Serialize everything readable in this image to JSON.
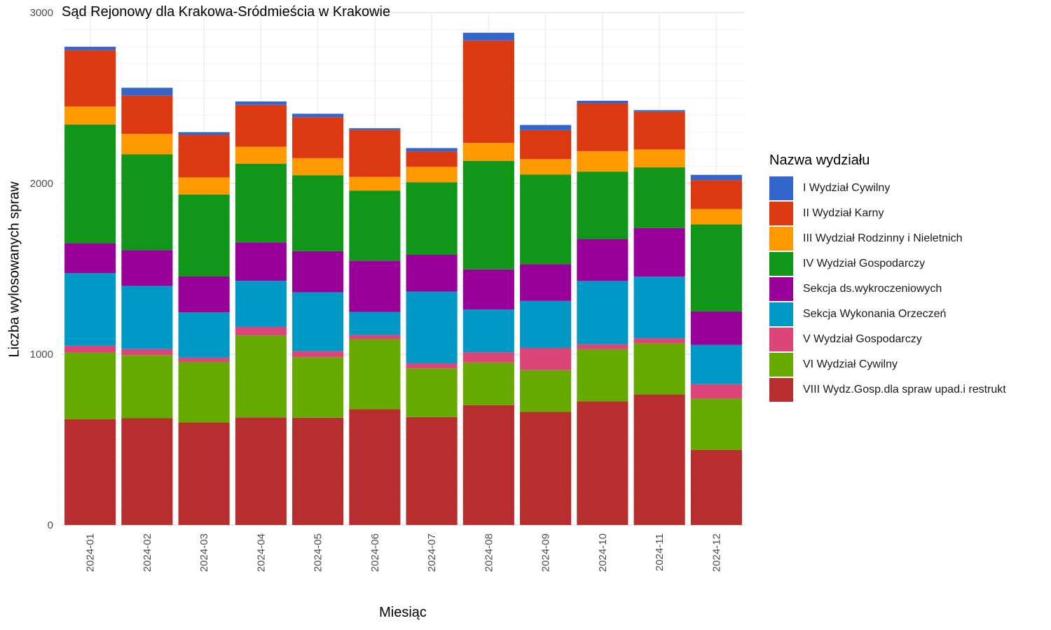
{
  "chart_data": {
    "type": "bar",
    "stacked": true,
    "title": "Sąd Rejonowy dla Krakowa-Sródmieścia w Krakowie",
    "xlabel": "Miesiąc",
    "ylabel": "Liczba wylosowanych spraw",
    "ylim": [
      0,
      3000
    ],
    "yticks": [
      "0",
      "1000",
      "2000",
      "3000"
    ],
    "grid": true,
    "legend_title": "Nazwa wydziału",
    "legend_position": "right",
    "categories": [
      "2024-01",
      "2024-02",
      "2024-03",
      "2024-04",
      "2024-05",
      "2024-06",
      "2024-07",
      "2024-08",
      "2024-09",
      "2024-10",
      "2024-11",
      "2024-12"
    ],
    "series": [
      {
        "name": "VIII Wydz.Gosp.dla spraw upad.i restrukt",
        "color": "#B82E2E",
        "values": [
          620,
          625,
          600,
          630,
          628,
          678,
          632,
          702,
          662,
          724,
          764,
          440
        ]
      },
      {
        "name": "VI Wydział Cywilny",
        "color": "#66AA00",
        "values": [
          390,
          370,
          355,
          480,
          355,
          410,
          285,
          250,
          245,
          305,
          300,
          300
        ]
      },
      {
        "name": "V Wydział Gospodarczy",
        "color": "#DD4477",
        "values": [
          40,
          35,
          25,
          50,
          35,
          25,
          30,
          60,
          130,
          30,
          30,
          85
        ]
      },
      {
        "name": "Sekcja Wykonania Orzeczeń",
        "color": "#0099C6",
        "values": [
          425,
          370,
          265,
          270,
          345,
          135,
          420,
          250,
          275,
          370,
          360,
          230
        ]
      },
      {
        "name": "Sekcja ds.wykroczeniowych",
        "color": "#990099",
        "values": [
          175,
          210,
          210,
          225,
          240,
          300,
          215,
          235,
          215,
          245,
          285,
          195
        ]
      },
      {
        "name": "IV Wydział Gospodarczy",
        "color": "#109618",
        "values": [
          695,
          560,
          480,
          460,
          445,
          410,
          425,
          635,
          525,
          395,
          355,
          510
        ]
      },
      {
        "name": "III Wydział Rodzinny i Nieletnich",
        "color": "#FF9900",
        "values": [
          105,
          120,
          100,
          100,
          100,
          80,
          90,
          105,
          90,
          120,
          105,
          90
        ]
      },
      {
        "name": "II Wydział Karny",
        "color": "#DC3912",
        "values": [
          330,
          225,
          250,
          245,
          240,
          275,
          90,
          600,
          170,
          280,
          220,
          170
        ]
      },
      {
        "name": "I Wydział Cywilny",
        "color": "#3366CC",
        "values": [
          20,
          45,
          15,
          20,
          20,
          10,
          20,
          45,
          30,
          15,
          10,
          30
        ]
      }
    ],
    "legend_order": [
      "I Wydział Cywilny",
      "II Wydział Karny",
      "III Wydział Rodzinny i Nieletnich",
      "IV Wydział Gospodarczy",
      "Sekcja ds.wykroczeniowych",
      "Sekcja Wykonania Orzeczeń",
      "V Wydział Gospodarczy",
      "VI Wydział Cywilny",
      "VIII Wydz.Gosp.dla spraw upad.i restrukt"
    ]
  }
}
